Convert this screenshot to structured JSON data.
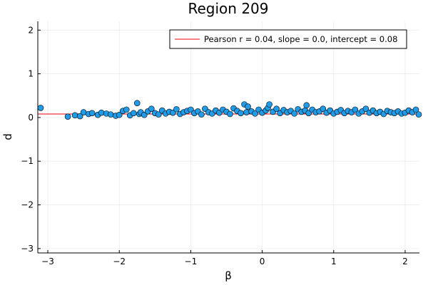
{
  "chart_data": {
    "type": "scatter",
    "title": "Region 209",
    "xlabel": "β",
    "ylabel": "d",
    "xlim": [
      -3.14,
      2.2
    ],
    "ylim": [
      -3.1,
      2.2
    ],
    "xticks": [
      -3,
      -2,
      -1,
      0,
      1,
      2
    ],
    "xtick_labels": [
      "−3",
      "−2",
      "−1",
      "0",
      "1",
      "2"
    ],
    "yticks": [
      -3,
      -2,
      -1,
      0,
      1,
      2
    ],
    "ytick_labels": [
      "−3",
      "−2",
      "−1",
      "0",
      "1",
      "2"
    ],
    "grid": true,
    "legend_position": "top-right",
    "colors": {
      "points": "#1f9be8",
      "fit_line": "#e8000b",
      "point_edge": "#000000"
    },
    "fit": {
      "label": "Pearson r = 0.04, slope = 0.0, intercept = 0.08",
      "slope": 0.0,
      "intercept": 0.08
    },
    "series": [
      {
        "x": [
          -3.1,
          -2.72,
          -2.62,
          -2.55,
          -2.5,
          -2.43,
          -2.38,
          -2.3,
          -2.25,
          -2.18,
          -2.12,
          -2.05,
          -2.0,
          -1.95,
          -1.9,
          -1.85,
          -1.8,
          -1.75,
          -1.72,
          -1.7,
          -1.65,
          -1.6,
          -1.55,
          -1.5,
          -1.45,
          -1.4,
          -1.35,
          -1.3,
          -1.25,
          -1.2,
          -1.15,
          -1.1,
          -1.05,
          -1.0,
          -0.95,
          -0.9,
          -0.85,
          -0.8,
          -0.75,
          -0.7,
          -0.65,
          -0.6,
          -0.55,
          -0.5,
          -0.45,
          -0.4,
          -0.35,
          -0.3,
          -0.25,
          -0.22,
          -0.2,
          -0.15,
          -0.1,
          -0.05,
          0.0,
          0.05,
          0.08,
          0.1,
          0.15,
          0.2,
          0.25,
          0.3,
          0.35,
          0.4,
          0.45,
          0.5,
          0.55,
          0.6,
          0.62,
          0.65,
          0.7,
          0.75,
          0.8,
          0.85,
          0.9,
          0.95,
          1.0,
          1.05,
          1.1,
          1.15,
          1.2,
          1.25,
          1.3,
          1.35,
          1.4,
          1.45,
          1.5,
          1.55,
          1.6,
          1.65,
          1.7,
          1.75,
          1.8,
          1.85,
          1.9,
          1.95,
          2.0,
          2.05,
          2.1,
          2.15,
          2.19
        ],
        "y": [
          0.22,
          0.02,
          0.05,
          0.03,
          0.12,
          0.08,
          0.1,
          0.06,
          0.11,
          0.09,
          0.07,
          0.04,
          0.06,
          0.15,
          0.18,
          0.05,
          0.1,
          0.33,
          0.08,
          0.12,
          0.06,
          0.14,
          0.2,
          0.1,
          0.07,
          0.16,
          0.09,
          0.13,
          0.11,
          0.19,
          0.08,
          0.12,
          0.15,
          0.18,
          0.1,
          0.14,
          0.07,
          0.2,
          0.12,
          0.09,
          0.16,
          0.11,
          0.18,
          0.13,
          0.08,
          0.21,
          0.15,
          0.1,
          0.3,
          0.12,
          0.25,
          0.14,
          0.09,
          0.18,
          0.11,
          0.16,
          0.22,
          0.3,
          0.13,
          0.2,
          0.1,
          0.17,
          0.12,
          0.15,
          0.09,
          0.19,
          0.13,
          0.16,
          0.28,
          0.1,
          0.18,
          0.12,
          0.14,
          0.2,
          0.11,
          0.16,
          0.09,
          0.13,
          0.17,
          0.1,
          0.15,
          0.12,
          0.18,
          0.09,
          0.14,
          0.2,
          0.11,
          0.16,
          0.1,
          0.13,
          0.08,
          0.15,
          0.12,
          0.1,
          0.14,
          0.09,
          0.11,
          0.16,
          0.12,
          0.18,
          0.07
        ]
      }
    ]
  }
}
